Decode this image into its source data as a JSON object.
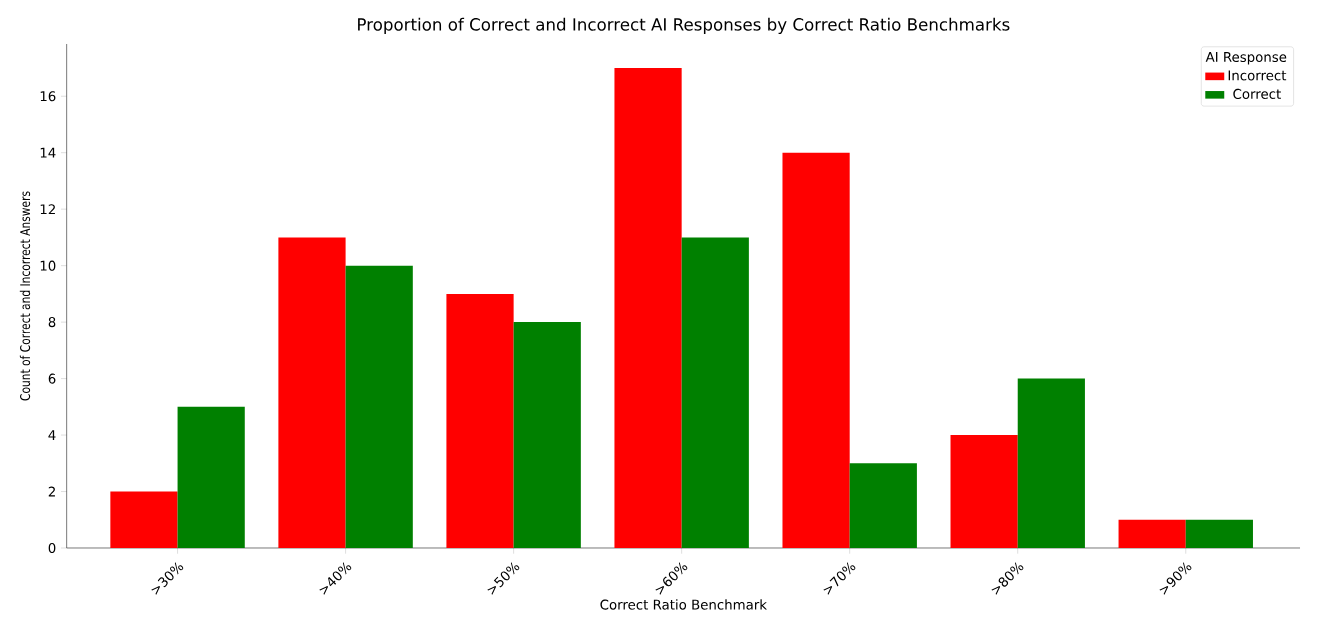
{
  "chart_data": {
    "type": "bar",
    "title": "Proportion of Correct and Incorrect AI Responses by Correct Ratio Benchmarks",
    "xlabel": "Correct Ratio Benchmark",
    "ylabel": "Count of Correct and Incorrect Answers",
    "legend_title": "AI Response",
    "categories": [
      ">30%",
      ">40%",
      ">50%",
      ">60%",
      ">70%",
      ">80%",
      ">90%"
    ],
    "series": [
      {
        "name": "Incorrect",
        "color": "#ff0000",
        "values": [
          2,
          11,
          9,
          17,
          14,
          4,
          1
        ]
      },
      {
        "name": "Correct",
        "color": "#008000",
        "values": [
          5,
          10,
          8,
          11,
          3,
          6,
          1
        ]
      }
    ],
    "ylim": [
      0,
      17.85
    ],
    "yticks": [
      0,
      2,
      4,
      6,
      8,
      10,
      12,
      14,
      16
    ],
    "grid": false,
    "legend": "top right"
  }
}
